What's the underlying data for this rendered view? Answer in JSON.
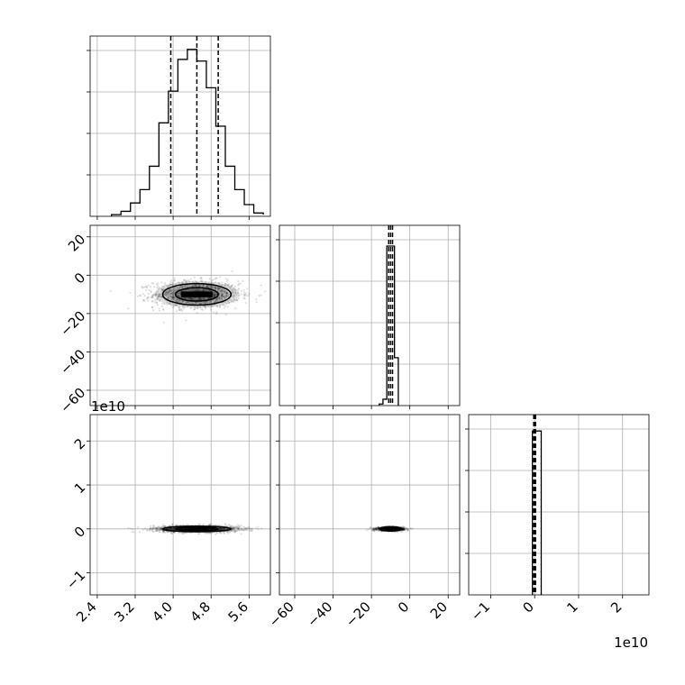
{
  "chart_data": {
    "type": "corner",
    "grid": true,
    "quantile_lines": "dashed",
    "offset_texts": {
      "row2_y": "1e10",
      "col2_x": "1e10"
    },
    "parameters": [
      {
        "id": "p0",
        "range": [
          2.25,
          6.05
        ],
        "ticks": [
          2.4,
          3.2,
          4.0,
          4.8,
          5.6
        ],
        "tick_labels": [
          "2.4",
          "3.2",
          "4.0",
          "4.8",
          "5.6"
        ],
        "quantiles": [
          3.95,
          4.5,
          4.95
        ],
        "hist": {
          "bins": [
            2.7,
            2.9,
            3.1,
            3.3,
            3.5,
            3.7,
            3.9,
            4.1,
            4.3,
            4.5,
            4.7,
            4.9,
            5.1,
            5.3,
            5.5,
            5.7,
            5.9
          ],
          "counts": [
            1,
            3,
            8,
            16,
            30,
            56,
            75,
            94,
            100,
            93,
            77,
            54,
            30,
            16,
            7,
            2,
            1
          ],
          "ymax": 108
        }
      },
      {
        "id": "p1",
        "range": [
          -68,
          26
        ],
        "ticks": [
          -60,
          -40,
          -20,
          0,
          20
        ],
        "tick_labels": [
          "−60",
          "−40",
          "−20",
          "0",
          "20"
        ],
        "quantiles": [
          -11,
          -10,
          -9
        ],
        "hist": {
          "bins": [
            -16,
            -14,
            -12,
            -10,
            -8,
            -6
          ],
          "counts": [
            1,
            4,
            100,
            100,
            30
          ],
          "ymax": 113
        }
      },
      {
        "id": "p2",
        "range": [
          -1.5,
          2.6
        ],
        "ticks": [
          -1,
          0,
          1,
          2
        ],
        "tick_labels": [
          "−1",
          "0",
          "1",
          "2"
        ],
        "quantiles": [
          -0.02,
          0.0,
          0.02
        ],
        "hist": {
          "bins": [
            -0.05,
            0.05,
            0.15
          ],
          "counts": [
            100,
            100
          ],
          "ymax": 110
        }
      }
    ],
    "pairs": [
      {
        "x": "p0",
        "y": "p1",
        "mean": [
          4.5,
          -10
        ],
        "sd": [
          0.45,
          3.5
        ],
        "core": [
          0.33,
          1.5
        ]
      },
      {
        "x": "p0",
        "y": "p2",
        "mean": [
          4.5,
          0.0
        ],
        "sd": [
          0.45,
          0.04
        ],
        "core": [
          0.2,
          0.03
        ]
      },
      {
        "x": "p1",
        "y": "p2",
        "mean": [
          -10,
          0.0
        ],
        "sd": [
          3.5,
          0.02
        ],
        "core": [
          1.2,
          0.025
        ]
      }
    ]
  }
}
